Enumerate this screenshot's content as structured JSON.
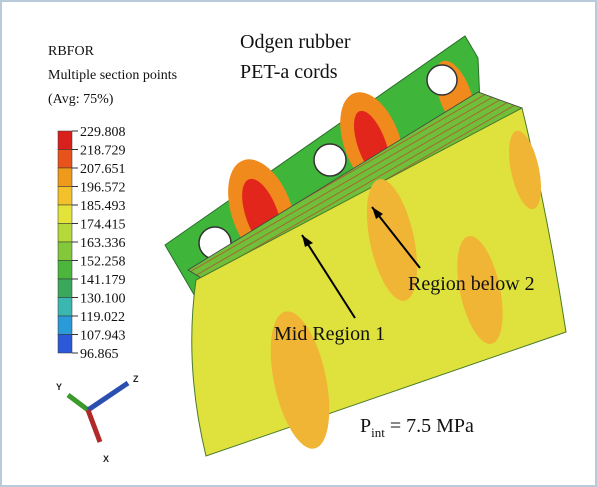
{
  "legend": {
    "title": [
      "RBFOR",
      "Multiple section points",
      "(Avg: 75%)"
    ],
    "values": [
      "229.808",
      "218.729",
      "207.651",
      "196.572",
      "185.493",
      "174.415",
      "163.336",
      "152.258",
      "141.179",
      "130.100",
      "119.022",
      "107.943",
      "96.865"
    ]
  },
  "annotations": {
    "material": [
      "Odgen rubber",
      "PET-a cords"
    ],
    "region_2": "Region below 2",
    "region_1": "Mid Region 1",
    "pressure": {
      "symbol": "P",
      "subscript": "int",
      "text": "= 7.5 MPa"
    }
  },
  "triad": {
    "y": "Y",
    "z": "Z",
    "x": "X"
  }
}
